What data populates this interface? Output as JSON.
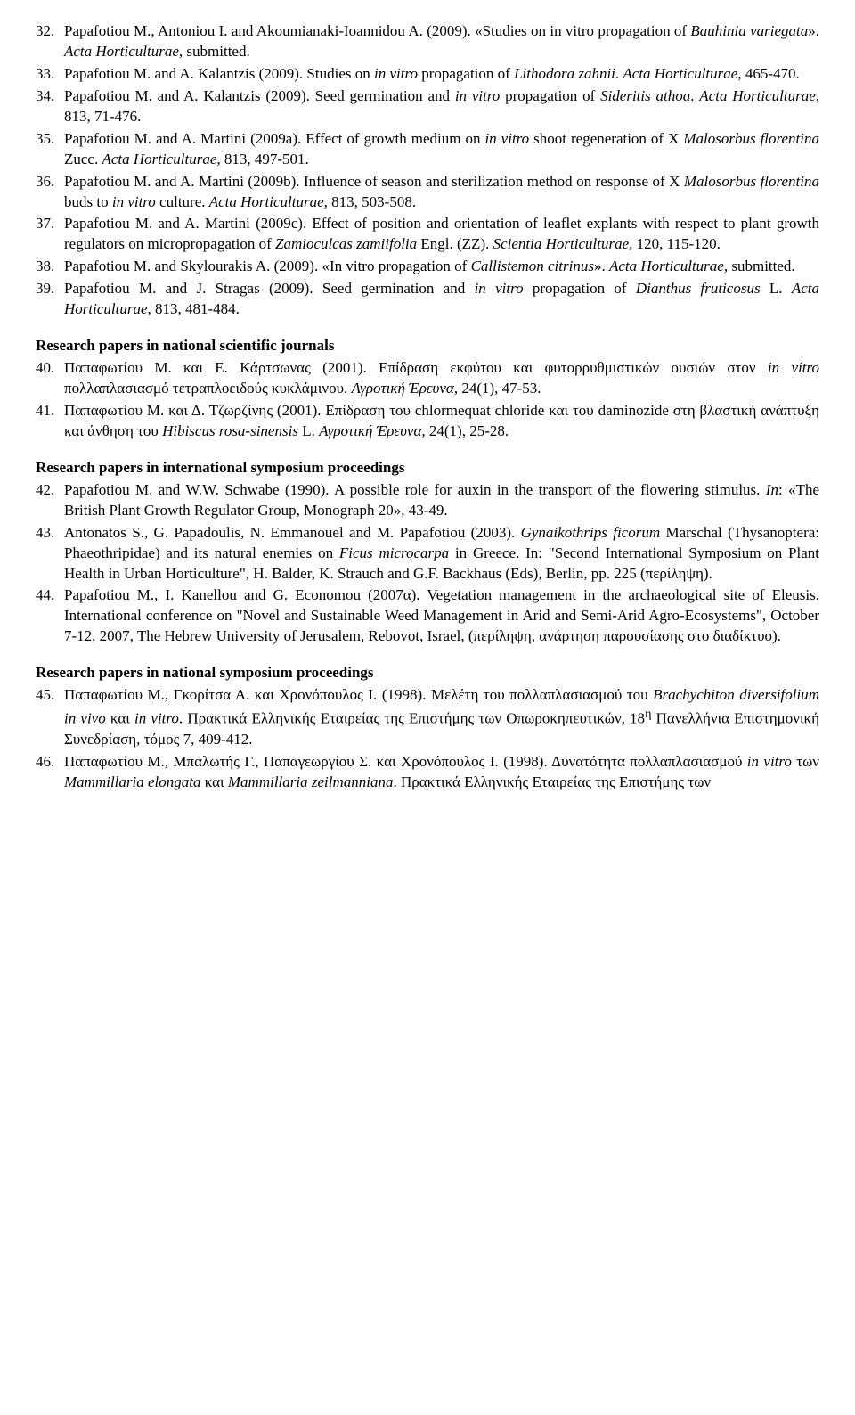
{
  "refs_a": [
    {
      "num": "32.",
      "html": "Papafotiou M., Antoniou I. and Akoumianaki-Ioannidou A. (2009). «Studies on in vitro propagation of <span class=\"i\">Bauhinia variegata</span>». <span class=\"i\">Acta Horticulturae</span>, submitted."
    },
    {
      "num": "33.",
      "html": "Papafotiou M. and A. Kalantzis (2009). Studies on <span class=\"i\">in vitro</span> propagation of <span class=\"i\">Lithodora zahnii</span>. <span class=\"i\">Acta Horticulturae</span>, 465-470."
    },
    {
      "num": "34.",
      "html": "Papafotiou M. and A. Kalantzis (2009). Seed germination and <span class=\"i\">in vitro</span> propagation of <span class=\"i\">Sideritis athoa</span>. <span class=\"i\">Acta Horticulturae</span>, 813, 71-476."
    },
    {
      "num": "35.",
      "html": "Papafotiou M. and A. Martini (2009a). Effect of growth medium on <span class=\"i\">in vitro</span> shoot regeneration of X <span class=\"i\">Malosorbus florentina</span> Zucc. <span class=\"i\">Acta Horticulturae</span>, 813, 497-501."
    },
    {
      "num": "36.",
      "html": "Papafotiou M. and A. Martini (2009b). Influence of season and sterilization method on response of X <span class=\"i\">Malosorbus florentina</span> buds to <span class=\"i\">in vitro</span> culture. <span class=\"i\">Acta Horticulturae,</span> 813, 503-508."
    },
    {
      "num": "37.",
      "html": "Papafotiou M. and A. Martini (2009c). Effect of position and orientation of leaflet explants with respect to plant growth regulators on micropropagation of <span class=\"i\">Zamioculcas zamiifolia</span> Engl. (ZZ). <span class=\"i\">Scientia Horticulturae,</span> 120, 115-120."
    },
    {
      "num": "38.",
      "html": "Papafotiou M. and Skylourakis A. (2009). «In vitro propagation of <span class=\"i\">Callistemon citrinus</span>». <span class=\"i\">Acta Horticulturae</span>, submitted."
    },
    {
      "num": "39.",
      "html": "Papafotiou M. and J. Stragas (2009). Seed germination and <span class=\"i\">in vitro</span> propagation of <span class=\"i\">Dianthus fruticosus</span> L. <span class=\"i\">Acta Horticulturae</span>, 813, 481-484."
    }
  ],
  "heading_b": "Research papers in national scientific journals",
  "refs_b": [
    {
      "num": "40.",
      "html": "Παπαφωτίου Μ. και Ε. Κάρτσωνας (2001). Επίδραση εκφύτου και φυτορρυθμιστικών ουσιών στον <span class=\"i\">in vitro</span> πολλαπλασιασμό τετραπλοειδούς κυκλάμινου. <span class=\"i\">Αγροτική Έρευνα</span>, 24(1), 47-53."
    },
    {
      "num": "41.",
      "html": "Παπαφωτίου Μ. και Δ. Τζωρζίνης (2001). Επίδραση του chlormequat chloride και του daminozide στη βλαστική ανάπτυξη και άνθηση του <span class=\"i\">Hibiscus rosa-sinensis</span> L. <span class=\"i\">Αγροτική Έρευνα</span>, 24(1), 25-28."
    }
  ],
  "heading_c": "Research papers in international symposium proceedings",
  "refs_c": [
    {
      "num": "42.",
      "html": "Papafotiou M. and W.W. Schwabe (1990). A possible role for auxin in the transport of the flowering stimulus. <span class=\"i\">In</span>: «The British Plant Growth Regulator Group, Monograph 20», 43-49."
    },
    {
      "num": "43.",
      "html": "Antonatos S., G. Papadoulis, N. Emmanouel and M. Papafotiou (2003). <span class=\"i\">Gynaikothrips ficorum</span> Marschal (Thysanoptera: Phaeothripidae) and its natural enemies on <span class=\"i\">Ficus microcarpa</span> in Greece. In: \"Second International Symposium on Plant Health in Urban Horticulture\", H. Balder, K. Strauch and G.F. Backhaus (Eds), Berlin, pp. 225 (περίληψη)."
    },
    {
      "num": "44.",
      "html": "Papafotiou M., I. Kanellou and G. Economou (2007α). Vegetation management in the archaeological site of Eleusis. International conference on \"Novel and Sustainable Weed Management in Arid and Semi-Arid Agro-Ecosystems\", October 7-12, 2007, The Hebrew University of Jerusalem, Rebovot, Israel, (περίληψη, ανάρτηση παρουσίασης στο διαδίκτυο)."
    }
  ],
  "heading_d": "Research papers in national symposium proceedings",
  "refs_d": [
    {
      "num": "45.",
      "html": "Παπαφωτίου Μ., Γκορίτσα Α. και Χρονόπουλος Ι. (1998). Μελέτη του πολλαπλασιασμού του <span class=\"i\">Brachychiton diversifolium in vivo</span> και <span class=\"i\">in vitro</span>. Πρακτικά Ελληνικής Εταιρείας της Επιστήμης των Οπωροκηπευτικών, 18<sup>η</sup> Πανελλήνια Επιστημονική Συνεδρίαση, τόμος 7, 409-412."
    },
    {
      "num": "46.",
      "html": "Παπαφωτίου Μ., Μπαλωτής Γ., Παπαγεωργίου Σ. και Χρονόπουλος Ι. (1998). Δυνατότητα πολλαπλασιασμού <span class=\"i\">in vitro</span> των <span class=\"i\">Mammillaria elongata</span> και <span class=\"i\">Mammillaria zeilmanniana</span>. Πρακτικά Ελληνικής Εταιρείας της Επιστήμης των"
    }
  ]
}
